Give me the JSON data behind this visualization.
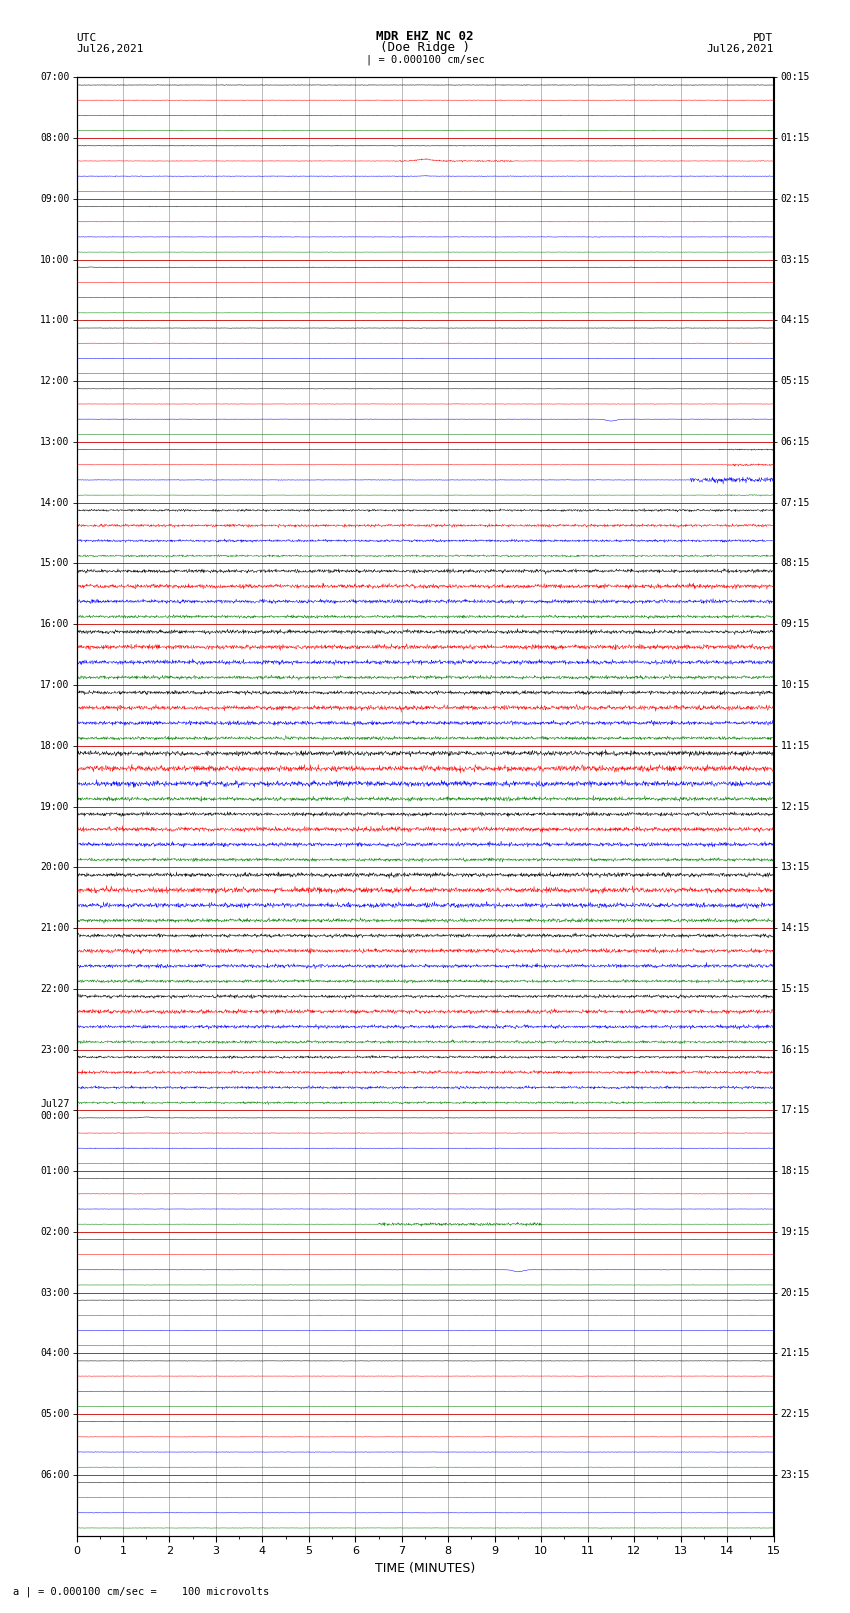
{
  "title_line1": "MDR EHZ NC 02",
  "title_line2": "(Doe Ridge )",
  "scale_label": "| = 0.000100 cm/sec",
  "bottom_label": "a | = 0.000100 cm/sec =    100 microvolts",
  "xlabel": "TIME (MINUTES)",
  "left_times": [
    "07:00",
    "08:00",
    "09:00",
    "10:00",
    "11:00",
    "12:00",
    "13:00",
    "14:00",
    "15:00",
    "16:00",
    "17:00",
    "18:00",
    "19:00",
    "20:00",
    "21:00",
    "22:00",
    "23:00",
    "Jul27\n00:00",
    "01:00",
    "02:00",
    "03:00",
    "04:00",
    "05:00",
    "06:00"
  ],
  "right_times": [
    "00:15",
    "01:15",
    "02:15",
    "03:15",
    "04:15",
    "05:15",
    "06:15",
    "07:15",
    "08:15",
    "09:15",
    "10:15",
    "11:15",
    "12:15",
    "13:15",
    "14:15",
    "15:15",
    "16:15",
    "17:15",
    "18:15",
    "19:15",
    "20:15",
    "21:15",
    "22:15",
    "23:15"
  ],
  "n_rows": 24,
  "colors": [
    "black",
    "red",
    "blue",
    "green"
  ],
  "bg_color": "white",
  "figsize": [
    8.5,
    16.13
  ],
  "dpi": 100,
  "xmin": 0,
  "xmax": 15,
  "xticks": [
    0,
    1,
    2,
    3,
    4,
    5,
    6,
    7,
    8,
    9,
    10,
    11,
    12,
    13,
    14,
    15
  ],
  "vgrid_color": "#888888",
  "hgrid_color": "#cc0000",
  "vgrid_lw": 0.4,
  "hgrid_lw": 0.6
}
